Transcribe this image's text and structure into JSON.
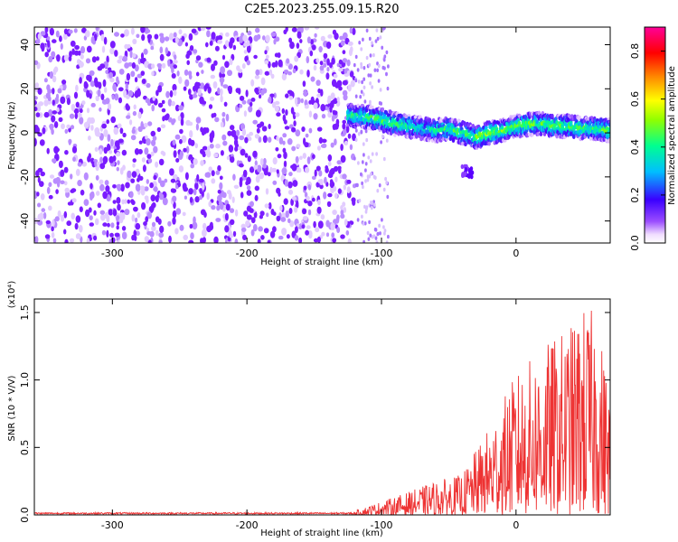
{
  "title": "C2E5.2023.255.09.15.R20",
  "chart_data": [
    {
      "type": "heatmap",
      "xlabel": "Height of straight line (km)",
      "ylabel": "Frequency (Hz)",
      "xlim": [
        -358,
        70
      ],
      "ylim": [
        -50,
        48
      ],
      "xticks": [
        -300,
        -200,
        -100,
        0
      ],
      "yticks": [
        -40,
        -20,
        0,
        20,
        40
      ],
      "colorbar": {
        "label": "Normalized spectral amplitude",
        "range": [
          0.0,
          0.9
        ],
        "ticks": [
          "0.0",
          "0.2",
          "0.4",
          "0.6",
          "0.8"
        ],
        "colormap": "rainbow (white → purple → blue → cyan → green → yellow → red → magenta)"
      },
      "noise_region": {
        "x_range": [
          -358,
          -120
        ],
        "freq_range": [
          -50,
          48
        ],
        "amplitude": 0.05
      },
      "ridge": {
        "x": [
          -125,
          -110,
          -100,
          -90,
          -80,
          -70,
          -60,
          -50,
          -40,
          -30,
          -20,
          -10,
          0,
          10,
          20,
          30,
          40,
          50,
          60,
          70
        ],
        "freq": [
          8,
          7,
          6,
          4,
          3,
          2,
          1,
          2,
          0,
          -2,
          0,
          1,
          3,
          4,
          4,
          3,
          3,
          2,
          2,
          1
        ],
        "amplitude": [
          0.45,
          0.5,
          0.55,
          0.5,
          0.45,
          0.4,
          0.45,
          0.5,
          0.5,
          0.55,
          0.6,
          0.55,
          0.55,
          0.55,
          0.5,
          0.55,
          0.5,
          0.5,
          0.5,
          0.55
        ]
      },
      "secondary_feature": {
        "x_range": [
          -40,
          -32
        ],
        "freq_range": [
          -20,
          -15
        ]
      }
    },
    {
      "type": "line",
      "xlabel": "Height of straight line (km)",
      "ylabel": "SNR (10 * V/V)",
      "y_multiplier": "(x10⁴)",
      "color": "#ee3333",
      "xlim": [
        -358,
        70
      ],
      "ylim": [
        0,
        1.6
      ],
      "xticks": [
        -300,
        -200,
        -100,
        0
      ],
      "yticks": [
        "0.0",
        "0.5",
        "1.0",
        "1.5"
      ],
      "envelope": {
        "x": [
          -358,
          -150,
          -120,
          -100,
          -80,
          -60,
          -40,
          -20,
          0,
          20,
          40,
          50,
          60,
          70
        ],
        "y_max": [
          0.02,
          0.02,
          0.03,
          0.1,
          0.17,
          0.25,
          0.3,
          0.65,
          1.05,
          1.25,
          1.4,
          1.55,
          1.5,
          0.9
        ]
      }
    }
  ]
}
